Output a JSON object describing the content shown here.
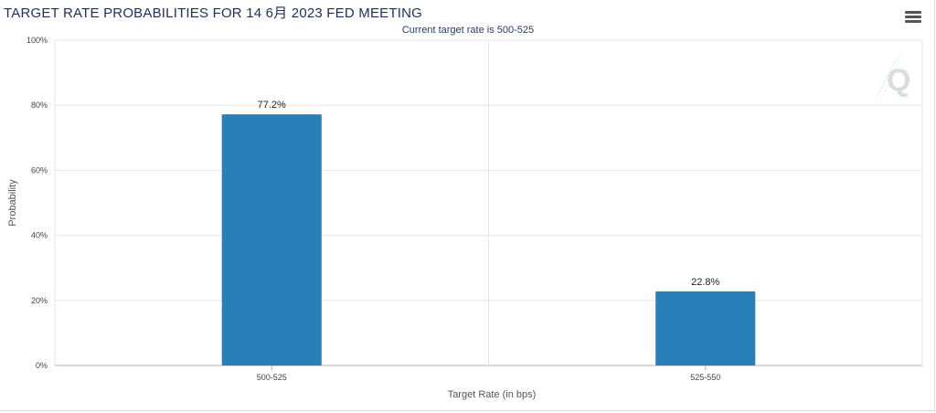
{
  "chart_data": {
    "type": "bar",
    "title": "TARGET RATE PROBABILITIES FOR 14 6月 2023 FED MEETING",
    "subtitle": "Current target rate is 500-525",
    "categories": [
      "500-525",
      "525-550"
    ],
    "values": [
      77.2,
      22.8
    ],
    "data_labels": [
      "77.2%",
      "22.8%"
    ],
    "xlabel": "Target Rate (in bps)",
    "ylabel": "Probability",
    "ylim": [
      0,
      100
    ],
    "yticks": [
      {
        "value": 0,
        "label": "0%"
      },
      {
        "value": 20,
        "label": "20%"
      },
      {
        "value": 40,
        "label": "40%"
      },
      {
        "value": 60,
        "label": "60%"
      },
      {
        "value": 80,
        "label": "80%"
      },
      {
        "value": 100,
        "label": "100%"
      }
    ],
    "grid": true,
    "bar_color": "#2980b9",
    "grid_color": "#e6e6e6"
  },
  "toolbar": {
    "menu_icon": "hamburger-menu-icon",
    "logo_icon": "quikstrike-logo-icon"
  }
}
